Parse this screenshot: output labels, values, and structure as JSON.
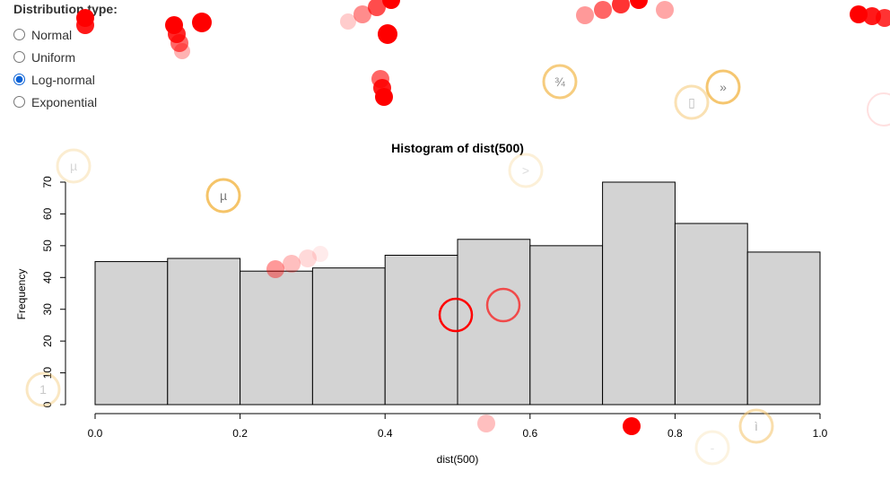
{
  "controls": {
    "label": "Distribution type:",
    "options": [
      {
        "label": "Normal",
        "value": "norm",
        "selected": false
      },
      {
        "label": "Uniform",
        "value": "unif",
        "selected": false
      },
      {
        "label": "Log-normal",
        "value": "lnorm",
        "selected": true
      },
      {
        "label": "Exponential",
        "value": "exp",
        "selected": false
      }
    ]
  },
  "chart_data": {
    "type": "bar",
    "title": "Histogram of dist(500)",
    "xlabel": "dist(500)",
    "ylabel": "Frequency",
    "bins": [
      [
        0.0,
        0.1
      ],
      [
        0.1,
        0.2
      ],
      [
        0.2,
        0.3
      ],
      [
        0.3,
        0.4
      ],
      [
        0.4,
        0.5
      ],
      [
        0.5,
        0.6
      ],
      [
        0.6,
        0.7
      ],
      [
        0.7,
        0.8
      ],
      [
        0.8,
        0.9
      ],
      [
        0.9,
        1.0
      ]
    ],
    "values": [
      45,
      46,
      42,
      43,
      47,
      52,
      50,
      70,
      57,
      48
    ],
    "xlim": [
      0.0,
      1.0
    ],
    "ylim": [
      0,
      70
    ],
    "x_ticks": [
      "0.0",
      "0.2",
      "0.4",
      "0.6",
      "0.8",
      "1.0"
    ],
    "y_ticks": [
      "0",
      "10",
      "20",
      "30",
      "40",
      "50",
      "60",
      "70"
    ],
    "bar_color": "#d3d3d3",
    "grid": false
  },
  "overlay": {
    "ring_glyphs": [
      "¾",
      "»",
      "µ",
      "µ",
      ">",
      "1",
      "ì",
      "-",
      "▯"
    ],
    "trail_color": "#ff0000",
    "ring_color": "#f5c469"
  }
}
